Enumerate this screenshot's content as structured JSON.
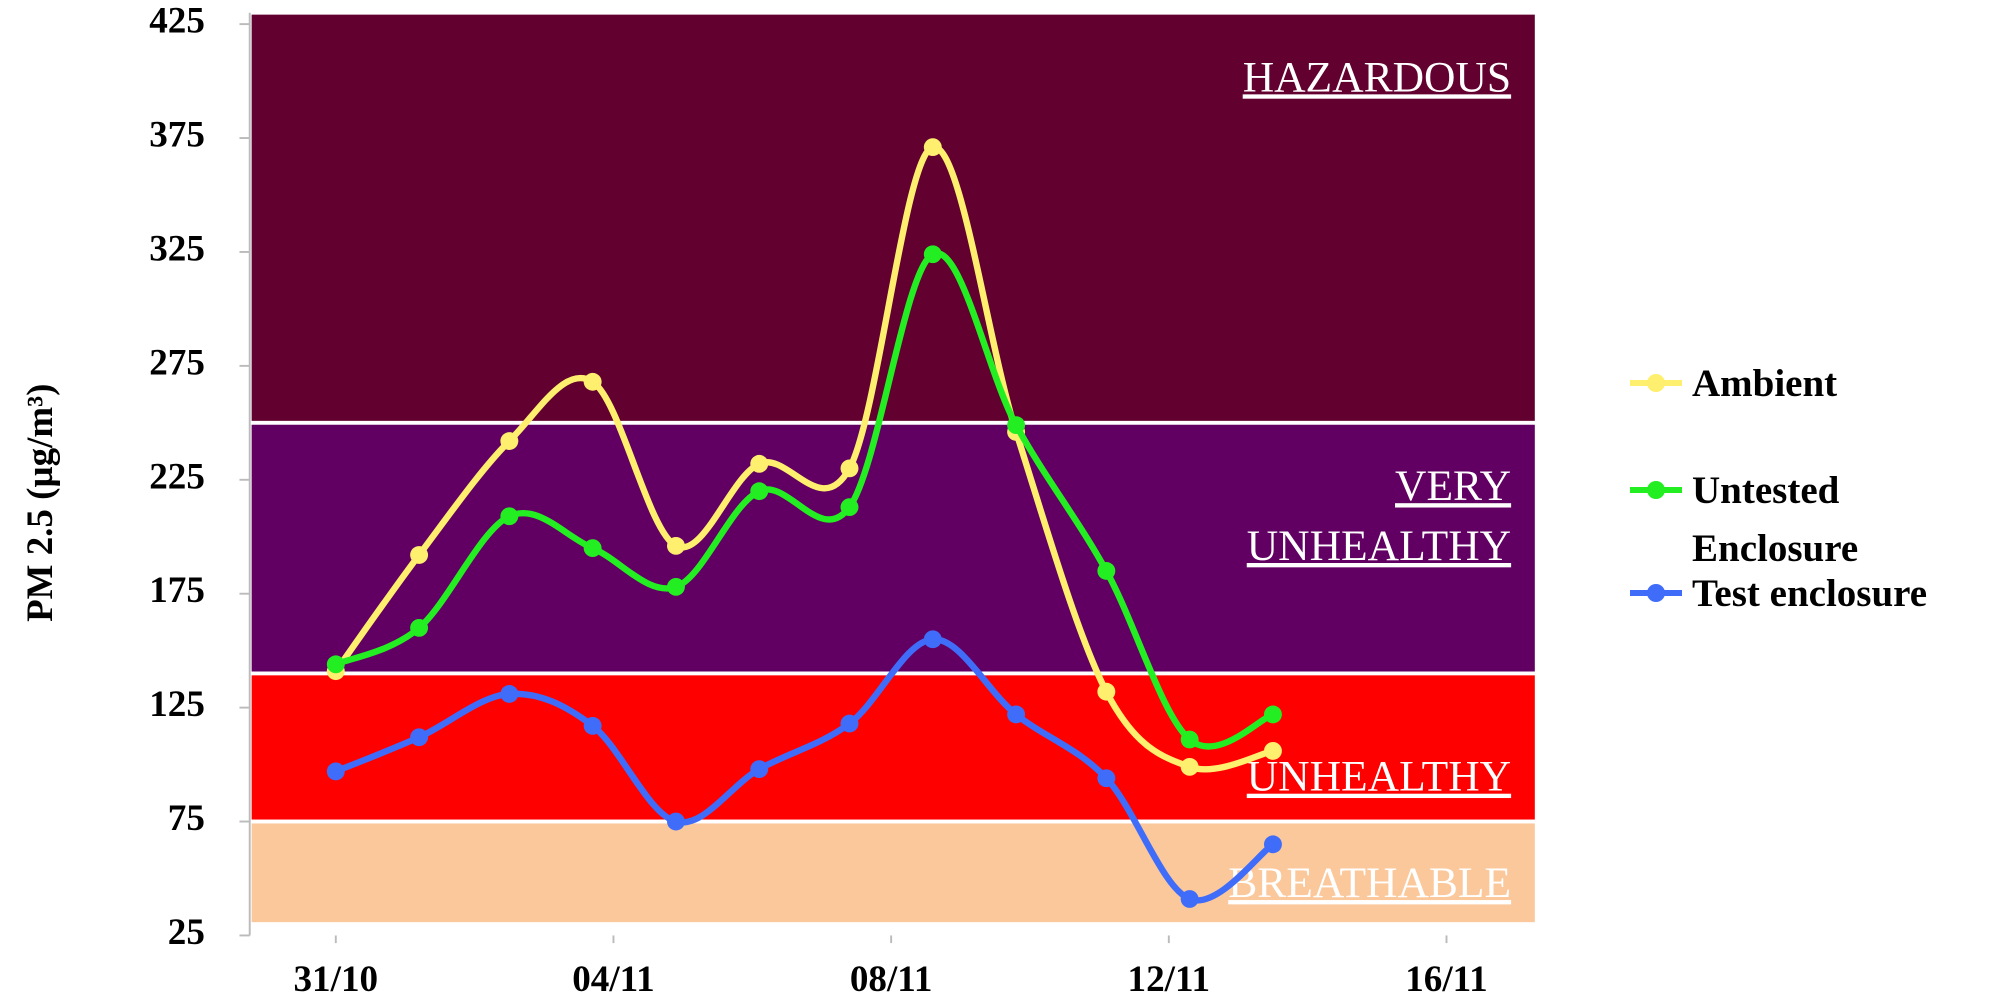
{
  "chart_data": {
    "type": "line",
    "y_label": "PM 2.5 (µg/m³)",
    "x": [
      0,
      1.2,
      2.5,
      3.7,
      4.9,
      6.1,
      7.4,
      8.6,
      9.8,
      11.1,
      12.3,
      13.5
    ],
    "xlim": [
      -1.24,
      17.3
    ],
    "xticks": [
      {
        "value": 0,
        "label": "31/10"
      },
      {
        "value": 4,
        "label": "04/11"
      },
      {
        "value": 8,
        "label": "08/11"
      },
      {
        "value": 12,
        "label": "12/11"
      },
      {
        "value": 16,
        "label": "16/11"
      }
    ],
    "ylim": [
      25,
      430
    ],
    "yticks": [
      25,
      75,
      125,
      175,
      225,
      275,
      325,
      375,
      425
    ],
    "bands": [
      {
        "label": [
          "HAZARDOUS"
        ],
        "from": 250,
        "to": 430,
        "color": "#620030"
      },
      {
        "label": [
          "VERY",
          "UNHEALTHY"
        ],
        "from": 140,
        "to": 250,
        "color": "#610062"
      },
      {
        "label": [
          "UNHEALTHY"
        ],
        "from": 75,
        "to": 140,
        "color": "#ff0000"
      },
      {
        "label": [
          "BREATHABLE"
        ],
        "from": 30,
        "to": 75,
        "color": "#fbc89c"
      }
    ],
    "series": [
      {
        "name": "Ambient",
        "color": "#ffef6e",
        "values": [
          141,
          192,
          242,
          268,
          196,
          232,
          230,
          371,
          246,
          132,
          99,
          106
        ]
      },
      {
        "name": "Untested Enclosure",
        "color": "#22ee22",
        "values": [
          144,
          160,
          209,
          195,
          178,
          220,
          213,
          324,
          249,
          185,
          111,
          122
        ]
      },
      {
        "name": "Test enclosure",
        "color": "#3f6dfa",
        "values": [
          97,
          112,
          131,
          117,
          75,
          98,
          118,
          155,
          122,
          94,
          41,
          65
        ]
      }
    ]
  }
}
